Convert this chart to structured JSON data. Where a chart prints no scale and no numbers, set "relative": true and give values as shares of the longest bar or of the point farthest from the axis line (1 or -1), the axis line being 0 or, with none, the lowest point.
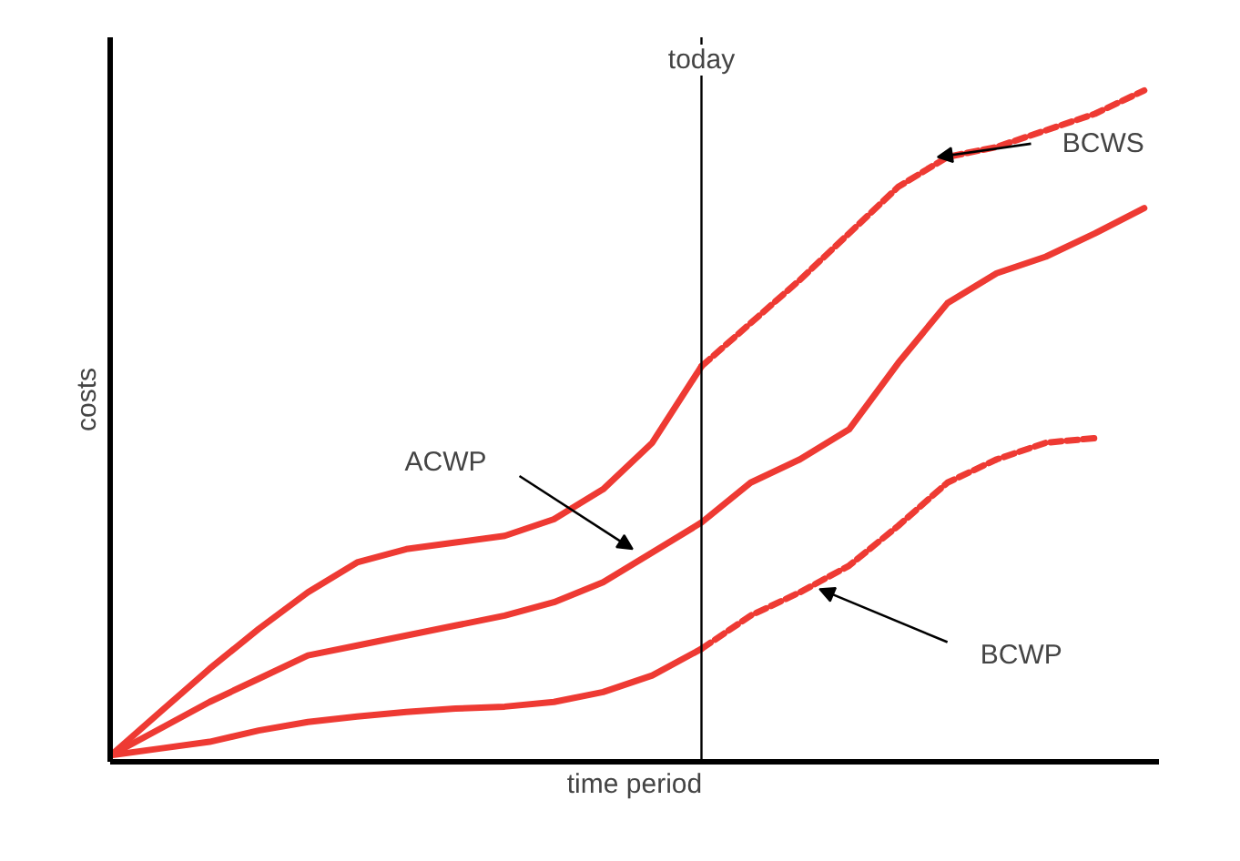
{
  "chart_data": {
    "type": "line",
    "relative": true,
    "xlabel": "time period",
    "ylabel": "costs",
    "marker": "none",
    "categories": [
      null,
      null,
      null,
      null,
      null,
      null,
      null,
      null,
      null,
      null,
      null,
      null,
      null,
      null,
      null,
      null,
      null,
      null,
      null,
      null,
      null,
      null
    ],
    "series": [
      {
        "color": "#ee3a33",
        "line_style": "solid",
        "values": [
          0,
          0.065,
          0.13,
          0.19,
          0.245,
          0.29,
          0.31,
          0.32,
          0.33,
          0.355,
          0.4,
          0.47,
          0.585,
          null,
          null,
          null,
          null,
          null,
          null,
          null,
          null,
          null
        ]
      },
      {
        "color": "#ee3a33",
        "line_style": "dashed",
        "values": [
          null,
          null,
          null,
          null,
          null,
          null,
          null,
          null,
          null,
          null,
          null,
          null,
          0.585,
          0.65,
          0.715,
          0.785,
          0.855,
          0.9,
          0.915,
          0.94,
          0.965,
          1
        ]
      },
      {
        "color": "#ee3a33",
        "line_style": "solid",
        "values": [
          0,
          0.04,
          0.08,
          0.115,
          0.15,
          0.165,
          0.18,
          0.195,
          0.21,
          0.23,
          0.26,
          0.305,
          0.35,
          0.41,
          0.445,
          0.49,
          0.59,
          0.68,
          0.725,
          0.75,
          0.785,
          0.823
        ]
      },
      {
        "color": "#ee3a33",
        "line_style": "solid",
        "values": [
          0,
          0.01,
          0.02,
          0.037,
          0.05,
          0.058,
          0.065,
          0.07,
          0.073,
          0.08,
          0.095,
          0.12,
          0.16,
          null,
          null,
          null,
          null,
          null,
          null,
          null,
          null,
          null
        ]
      },
      {
        "color": "#ee3a33",
        "line_style": "dashed",
        "values": [
          null,
          null,
          null,
          null,
          null,
          null,
          null,
          null,
          null,
          null,
          null,
          null,
          0.16,
          0.21,
          0.245,
          0.285,
          0.345,
          0.41,
          0.445,
          0.47,
          0.477,
          null
        ]
      }
    ],
    "annotations": [
      "today",
      "BCWS",
      "ACWP",
      "BCWP"
    ]
  }
}
